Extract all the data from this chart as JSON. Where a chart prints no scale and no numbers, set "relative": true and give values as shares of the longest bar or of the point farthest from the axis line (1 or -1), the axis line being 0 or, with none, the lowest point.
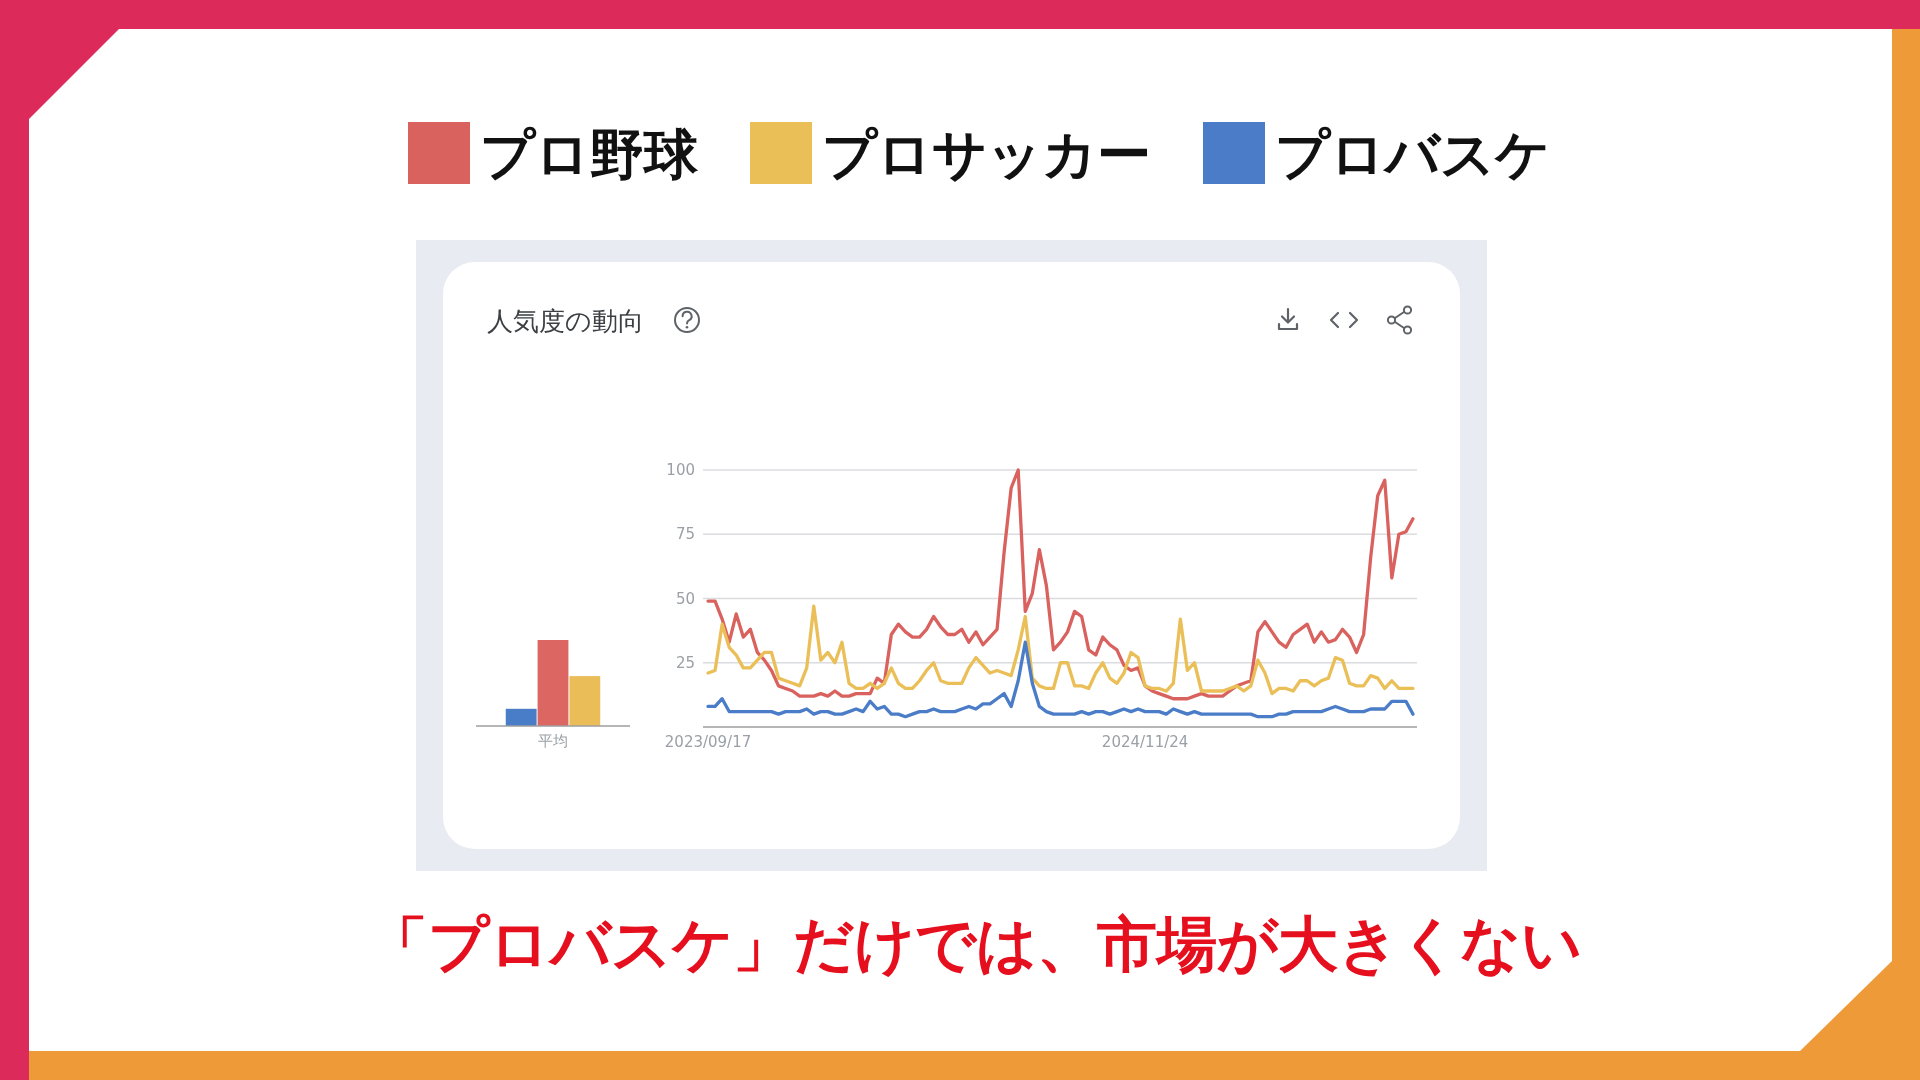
{
  "chart_data": [
    {
      "type": "bar",
      "title": "人気度の動向",
      "categories": [
        "平均"
      ],
      "relative": true,
      "series": [
        {
          "color": "#4a7dc8",
          "values": [
            0.2
          ]
        },
        {
          "color": "#db6662",
          "values": [
            1
          ]
        },
        {
          "color": "#ebbd58",
          "values": [
            0.58
          ]
        }
      ]
    },
    {
      "type": "line",
      "x": [
        "2023-09-17",
        "2023-09-24",
        "2023-10-01",
        "2023-10-08",
        "2023-10-15",
        "2023-10-22",
        "2023-10-29",
        "2023-11-05",
        "2023-11-12",
        "2023-11-19",
        "2023-11-26",
        "2023-12-03",
        "2023-12-10",
        "2023-12-17",
        "2023-12-24",
        "2023-12-31",
        "2024-01-07",
        "2024-01-14",
        "2024-01-21",
        "2024-01-28",
        "2024-02-04",
        "2024-02-11",
        "2024-02-18",
        "2024-02-25",
        "2024-03-03",
        "2024-03-10",
        "2024-03-17",
        "2024-03-24",
        "2024-03-31",
        "2024-04-07",
        "2024-04-14",
        "2024-04-21",
        "2024-04-28",
        "2024-05-05",
        "2024-05-12",
        "2024-05-19",
        "2024-05-26",
        "2024-06-02",
        "2024-06-09",
        "2024-06-16",
        "2024-06-23",
        "2024-06-30",
        "2024-07-07",
        "2024-07-14",
        "2024-07-21",
        "2024-07-28",
        "2024-08-04",
        "2024-08-11",
        "2024-08-18",
        "2024-08-25",
        "2024-09-01",
        "2024-09-08",
        "2024-09-15",
        "2024-09-22",
        "2024-09-29",
        "2024-10-06",
        "2024-10-13",
        "2024-10-20",
        "2024-10-27",
        "2024-11-03",
        "2024-11-10",
        "2024-11-17",
        "2024-11-24",
        "2024-12-01",
        "2024-12-08",
        "2024-12-15",
        "2024-12-22",
        "2024-12-29",
        "2025-01-05",
        "2025-01-12",
        "2025-01-19",
        "2025-01-26",
        "2025-02-02",
        "2025-02-09",
        "2025-02-16",
        "2025-02-23",
        "2025-03-02",
        "2025-03-09",
        "2025-03-16",
        "2025-03-23",
        "2025-03-30",
        "2025-04-06",
        "2025-04-13",
        "2025-04-20",
        "2025-04-27",
        "2025-05-04",
        "2025-05-11",
        "2025-05-18",
        "2025-05-25",
        "2025-06-01",
        "2025-06-08",
        "2025-06-15",
        "2025-06-22",
        "2025-06-29",
        "2025-07-06",
        "2025-07-13",
        "2025-07-20",
        "2025-07-27",
        "2025-08-03",
        "2025-08-10",
        "2025-08-17"
      ],
      "series": [
        {
          "name": "プロ野球",
          "color": "#d9615e",
          "values": [
            49,
            49,
            42,
            33,
            44,
            35,
            38,
            29,
            26,
            22,
            16,
            15,
            14,
            12,
            12,
            12,
            13,
            12,
            14,
            12,
            12,
            13,
            13,
            13,
            19,
            17,
            36,
            40,
            37,
            35,
            35,
            38,
            43,
            39,
            36,
            36,
            38,
            33,
            37,
            32,
            35,
            38,
            68,
            93,
            100,
            45,
            52,
            69,
            55,
            30,
            33,
            37,
            45,
            43,
            30,
            28,
            35,
            32,
            30,
            24,
            22,
            23,
            16,
            14,
            13,
            12,
            11,
            11,
            11,
            12,
            13,
            12,
            12,
            12,
            14,
            16,
            17,
            18,
            37,
            41,
            37,
            33,
            31,
            36,
            38,
            40,
            33,
            37,
            33,
            34,
            38,
            35,
            29,
            36,
            66,
            90,
            96,
            58,
            75,
            76,
            81
          ]
        },
        {
          "name": "プロサッカー",
          "color": "#ebbf58",
          "values": [
            21,
            22,
            40,
            31,
            28,
            23,
            23,
            26,
            29,
            29,
            19,
            18,
            17,
            16,
            23,
            47,
            26,
            29,
            25,
            33,
            17,
            15,
            15,
            17,
            15,
            17,
            23,
            17,
            15,
            15,
            18,
            22,
            25,
            18,
            17,
            17,
            17,
            23,
            27,
            24,
            21,
            22,
            21,
            20,
            30,
            43,
            19,
            16,
            15,
            15,
            25,
            25,
            16,
            16,
            15,
            21,
            25,
            19,
            17,
            21,
            29,
            27,
            16,
            15,
            15,
            14,
            17,
            42,
            22,
            25,
            14,
            14,
            14,
            14,
            15,
            16,
            14,
            16,
            26,
            21,
            13,
            15,
            15,
            14,
            18,
            18,
            16,
            18,
            19,
            27,
            26,
            17,
            16,
            16,
            20,
            19,
            15,
            18,
            15,
            15,
            15
          ]
        },
        {
          "name": "プロバスケ",
          "color": "#4a7cc7",
          "values": [
            8,
            8,
            11,
            6,
            6,
            6,
            6,
            6,
            6,
            6,
            5,
            6,
            6,
            6,
            7,
            5,
            6,
            6,
            5,
            5,
            6,
            7,
            6,
            10,
            7,
            8,
            5,
            5,
            4,
            5,
            6,
            6,
            7,
            6,
            6,
            6,
            7,
            8,
            7,
            9,
            9,
            11,
            13,
            8,
            18,
            33,
            17,
            8,
            6,
            5,
            5,
            5,
            5,
            6,
            5,
            6,
            6,
            5,
            6,
            7,
            6,
            7,
            6,
            6,
            6,
            5,
            7,
            6,
            5,
            6,
            5,
            5,
            5,
            5,
            5,
            5,
            5,
            5,
            4,
            4,
            4,
            5,
            5,
            6,
            6,
            6,
            6,
            6,
            7,
            8,
            7,
            6,
            6,
            6,
            7,
            7,
            7,
            10,
            10,
            10,
            5
          ]
        }
      ],
      "xlim": [
        "2023-09-12",
        "2025-08-21"
      ],
      "xticks": [
        {
          "value": "2023-09-17",
          "label": "2023/09/17"
        },
        {
          "value": "2024-11-24",
          "label": "2024/11/24"
        }
      ],
      "ylim": [
        0,
        100
      ],
      "yticks": [
        25,
        50,
        75,
        100
      ],
      "grid": "y",
      "legend": "top",
      "annotations": [
        "「プロバスケ」だけでは、市場が大きくない"
      ]
    }
  ]
}
